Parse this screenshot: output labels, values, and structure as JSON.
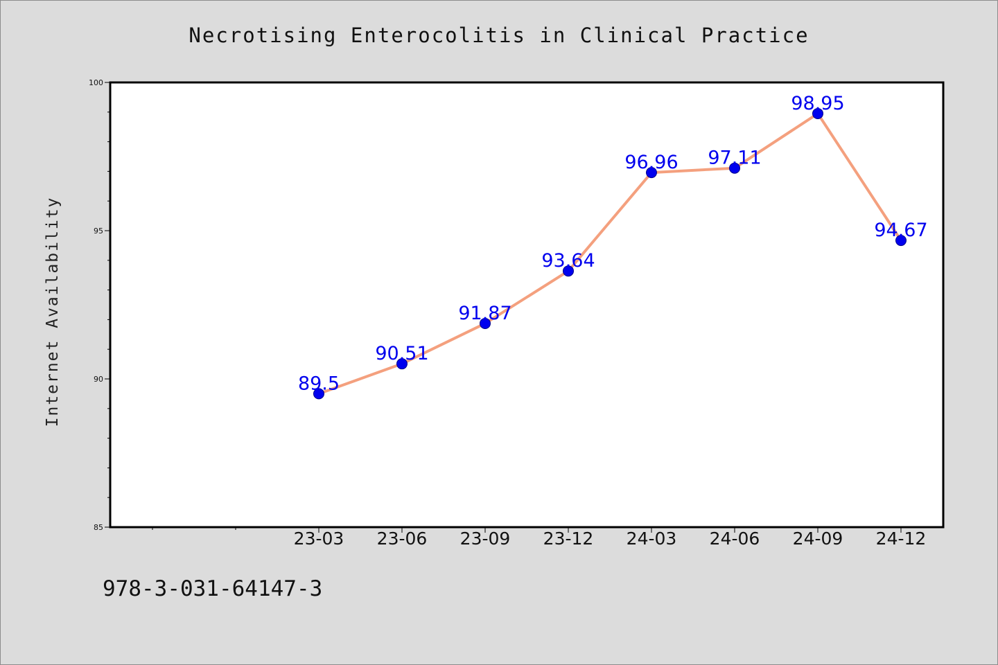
{
  "chart_data": {
    "type": "line",
    "title": "Necrotising Enterocolitis in Clinical Practice",
    "xlabel": "",
    "ylabel": "Internet Availability",
    "categories": [
      "23-03",
      "23-06",
      "23-09",
      "23-12",
      "24-03",
      "24-06",
      "24-09",
      "24-12"
    ],
    "series": [
      {
        "values": [
          89.5,
          90.51,
          91.87,
          93.64,
          96.96,
          97.11,
          98.95,
          94.67
        ]
      }
    ],
    "data_labels": [
      "89.5",
      "90.51",
      "91.87",
      "93.64",
      "96.96",
      "97.11",
      "98.95",
      "94.67"
    ],
    "ylim": [
      85,
      100
    ],
    "y_ticks": [
      85,
      90,
      95,
      100
    ],
    "grid": false,
    "legend": "none",
    "colors": {
      "line": "#f4a07e",
      "marker": "#0000ee",
      "marker_edge": "#00008b",
      "data_label": "#0000ee",
      "background": "#dcdcdc",
      "plot_background": "#ffffff"
    }
  },
  "footer": {
    "isbn": "978-3-031-64147-3"
  }
}
